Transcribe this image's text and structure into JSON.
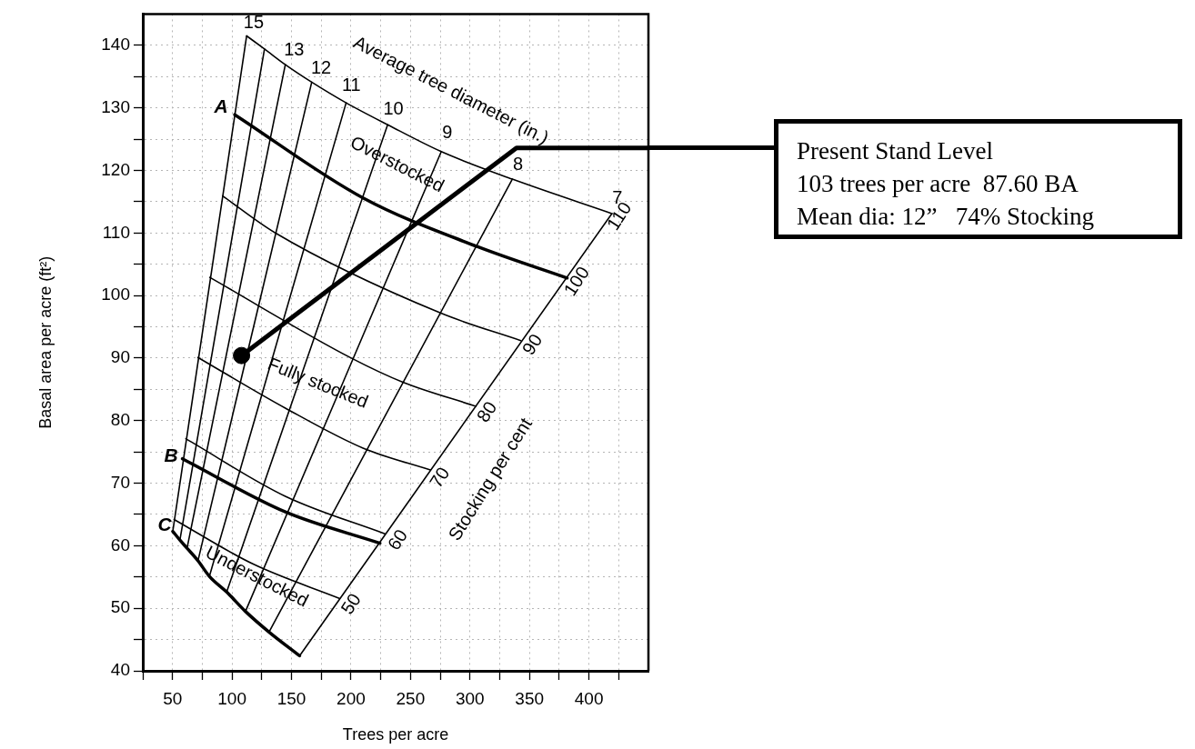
{
  "chart_data": {
    "type": "line",
    "xlabel": "Trees per acre",
    "ylabel": "Basal area per acre (ft²)",
    "xlim": [
      25,
      450
    ],
    "ylim": [
      40,
      145
    ],
    "xticks": [
      {
        "value": 25,
        "label": null
      },
      50,
      {
        "value": 75,
        "label": null
      },
      100,
      {
        "value": 125,
        "label": null
      },
      150,
      {
        "value": 175,
        "label": null
      },
      200,
      {
        "value": 225,
        "label": null
      },
      250,
      {
        "value": 275,
        "label": null
      },
      300,
      {
        "value": 325,
        "label": null
      },
      350,
      {
        "value": 375,
        "label": null
      },
      400,
      {
        "value": 425,
        "label": null
      }
    ],
    "yticks": [
      40,
      {
        "value": 45,
        "label": null
      },
      50,
      {
        "value": 55,
        "label": null
      },
      60,
      {
        "value": 65,
        "label": null
      },
      70,
      {
        "value": 75,
        "label": null
      },
      80,
      {
        "value": 85,
        "label": null
      },
      90,
      {
        "value": 95,
        "label": null
      },
      100,
      {
        "value": 105,
        "label": null
      },
      110,
      {
        "value": 115,
        "label": null
      },
      120,
      {
        "value": 125,
        "label": null
      },
      130,
      {
        "value": 135,
        "label": null
      },
      140
    ],
    "grid": true,
    "legend": false,
    "series": [
      {
        "color": "#000000",
        "x": [
          50.2,
          112.3
        ],
        "values": [
          62.3,
          141.5
        ]
      },
      {
        "color": "#000000",
        "x": [
          56.2,
          127.3
        ],
        "values": [
          60.9,
          139.4
        ]
      },
      {
        "color": "#000000",
        "x": [
          62.2,
          144.8
        ],
        "values": [
          59.6,
          136.9
        ]
      },
      {
        "color": "#000000",
        "x": [
          71.4,
          167.0
        ],
        "values": [
          57.6,
          134.1
        ]
      },
      {
        "color": "#000000",
        "x": [
          81.0,
          195.9
        ],
        "values": [
          55.1,
          130.8
        ]
      },
      {
        "color": "#000000",
        "x": [
          95.5,
          230.8
        ],
        "values": [
          52.6,
          127.3
        ]
      },
      {
        "color": "#000000",
        "x": [
          111.3,
          275.9
        ],
        "values": [
          49.5,
          123.0
        ]
      },
      {
        "color": "#000000",
        "x": [
          131.1,
          335.6
        ],
        "values": [
          46.2,
          118.6
        ]
      },
      {
        "color": "#000000",
        "x": [
          156.8,
          419.3
        ],
        "values": [
          42.4,
          113.1
        ]
      },
      {
        "color": "#000000",
        "x": [
          112.3,
          127.3,
          144.8,
          167.0,
          195.9,
          230.8,
          275.9,
          335.6,
          419.3
        ],
        "values": [
          141.5,
          139.4,
          136.9,
          134.1,
          130.8,
          127.3,
          123.0,
          118.6,
          113.1
        ]
      },
      {
        "color": "#000000",
        "x": [
          102.3,
          210.1,
          306.5,
          381.6
        ],
        "values": [
          128.9,
          115.6,
          107.8,
          102.8
        ]
      },
      {
        "color": "#000000",
        "x": [
          92.2,
          136.4,
          275.2,
          342.7
        ],
        "values": [
          115.9,
          110.0,
          97.2,
          92.8
        ]
      },
      {
        "color": "#000000",
        "x": [
          81.3,
          200.2,
          244.1,
          305.0
        ],
        "values": [
          102.9,
          90.0,
          86.1,
          82.3
        ]
      },
      {
        "color": "#000000",
        "x": [
          71.3,
          144.8,
          210.1,
          266.7
        ],
        "values": [
          90.1,
          82.0,
          75.6,
          72.1
        ]
      },
      {
        "color": "#000000",
        "x": [
          61.2,
          144.8,
          228.5
        ],
        "values": [
          77.1,
          67.9,
          61.9
        ]
      },
      {
        "color": "#000000",
        "x": [
          58.3,
          144.8,
          224.3
        ],
        "values": [
          73.9,
          65.4,
          60.4
        ]
      },
      {
        "color": "#000000",
        "x": [
          51.3,
          117.4,
          190.1
        ],
        "values": [
          64.2,
          57.1,
          51.6
        ]
      },
      {
        "color": "#000000",
        "x": [
          50.2,
          56.2,
          62.2,
          71.4,
          81.0,
          95.5,
          111.3,
          131.1,
          156.8
        ],
        "values": [
          62.3,
          60.9,
          59.6,
          57.6,
          55.1,
          52.6,
          49.5,
          46.2,
          42.4
        ]
      },
      {
        "color": "#000000",
        "x": [
          108.0,
          339.1,
          450
        ],
        "values": [
          90.4,
          123.6,
          123.6
        ]
      },
      {
        "type": "scatter",
        "marker": "circle",
        "color": "#000000",
        "x": [
          108.0
        ],
        "values": [
          90.4
        ]
      }
    ],
    "annotations": [
      "Average tree diameter (in.)",
      "15",
      "13",
      "12",
      "11",
      "10",
      "9",
      "8",
      "7",
      "110",
      "100",
      "90",
      "80",
      "70",
      "60",
      "50",
      "Stocking per cent",
      "Overstocked",
      "Fully stocked",
      "Understocked",
      "A",
      "B",
      "C",
      "Present Stand Level\n103 trees per acre  87.60 BA\nMean dia: 12”   74% Stocking"
    ]
  }
}
